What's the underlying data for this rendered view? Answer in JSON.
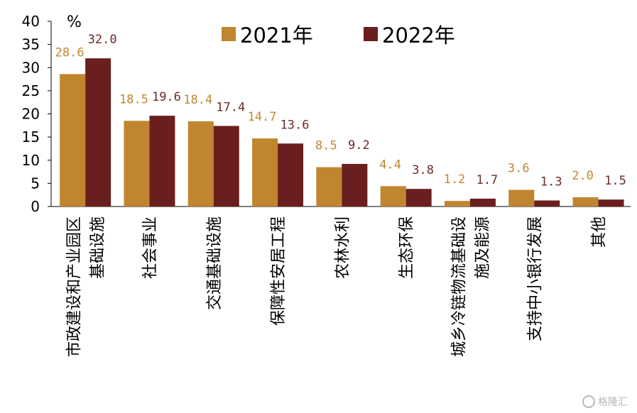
{
  "chart_data": {
    "type": "bar",
    "ylabel": "%",
    "ylim": [
      0,
      40
    ],
    "yticks": [
      0,
      5,
      10,
      15,
      20,
      25,
      30,
      35,
      40
    ],
    "categories": [
      [
        "市政建设和产业园区",
        "基础设施"
      ],
      [
        "社会事业"
      ],
      [
        "交通基础设施"
      ],
      [
        "保障性安居工程"
      ],
      [
        "农林水利"
      ],
      [
        "生态环保"
      ],
      [
        "城乡冷链物流基础设",
        "施及能源"
      ],
      [
        "支持中小银行发展"
      ],
      [
        "其他"
      ]
    ],
    "series": [
      {
        "name": "2021年",
        "color": "#c0862f",
        "label_color": "#c0862f",
        "values": [
          28.6,
          18.5,
          18.4,
          14.7,
          8.5,
          4.4,
          1.2,
          3.6,
          2.0
        ],
        "labels": [
          "28.6",
          "18.5",
          "18.4",
          "14.7",
          "8.5",
          "4.4",
          "1.2",
          "3.6",
          "2.0"
        ]
      },
      {
        "name": "2022年",
        "color": "#6b1e1e",
        "label_color": "#6b2a2a",
        "values": [
          32.0,
          19.6,
          17.4,
          13.6,
          9.2,
          3.8,
          1.7,
          1.3,
          1.5
        ],
        "labels": [
          "32.0",
          "19.6",
          "17.4",
          "13.6",
          "9.2",
          "3.8",
          "1.7",
          "1.3",
          "1.5"
        ]
      }
    ],
    "legend": "top-center",
    "grid": false
  },
  "watermark": "格隆汇"
}
